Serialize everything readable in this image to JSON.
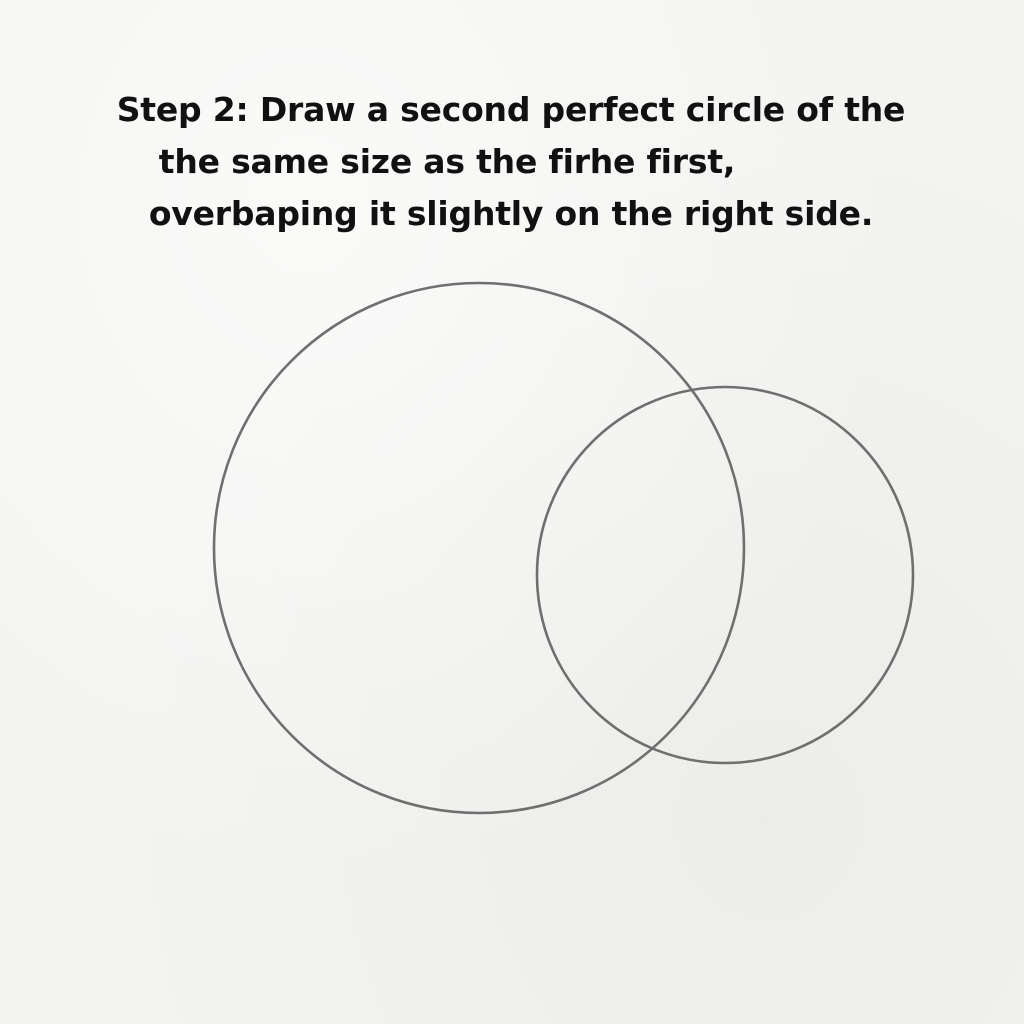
{
  "instruction": {
    "line1": "Step 2: Draw a second perfect circle of the",
    "line2": "the same size as the firhe first,",
    "line3": "overbaping it slightly on the right side."
  },
  "colors": {
    "background": "#f3f3f1",
    "text": "#111111",
    "stroke": "#6f6f6f"
  }
}
